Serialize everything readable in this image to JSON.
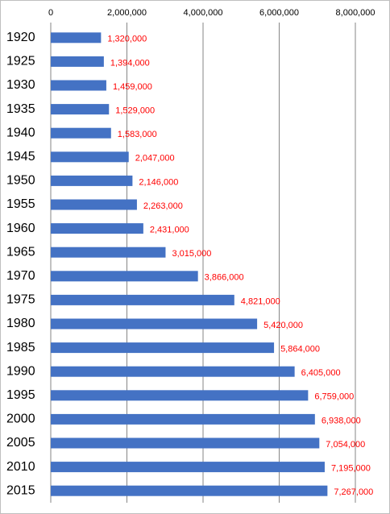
{
  "chart_data": {
    "type": "bar",
    "orientation": "horizontal",
    "categories": [
      "1920",
      "1925",
      "1930",
      "1935",
      "1940",
      "1945",
      "1950",
      "1955",
      "1960",
      "1965",
      "1970",
      "1975",
      "1980",
      "1985",
      "1990",
      "1995",
      "2000",
      "2005",
      "2010",
      "2015"
    ],
    "values": [
      1320000,
      1394000,
      1459000,
      1529000,
      1583000,
      2047000,
      2146000,
      2263000,
      2431000,
      3015000,
      3866000,
      4821000,
      5420000,
      5864000,
      6405000,
      6759000,
      6938000,
      7054000,
      7195000,
      7267000
    ],
    "value_labels": [
      "1,320,000",
      "1,394,000",
      "1,459,000",
      "1,529,000",
      "1,583,000",
      "2,047,000",
      "2,146,000",
      "2,263,000",
      "2,431,000",
      "3,015,000",
      "3,866,000",
      "4,821,000",
      "5,420,000",
      "5,864,000",
      "6,405,000",
      "6,759,000",
      "6,938,000",
      "7,054,000",
      "7,195,000",
      "7,267,000"
    ],
    "color": "#4472c4",
    "xlim": [
      0,
      8000000
    ],
    "xticks": [
      0,
      {
        "value": 2000000,
        "label": "2,000,000"
      },
      {
        "value": 4000000,
        "label": "4,000,000"
      },
      {
        "value": 6000000,
        "label": "6,000,000"
      },
      {
        "value": 8000000,
        "label": "8,000,000"
      }
    ],
    "grid": true
  }
}
